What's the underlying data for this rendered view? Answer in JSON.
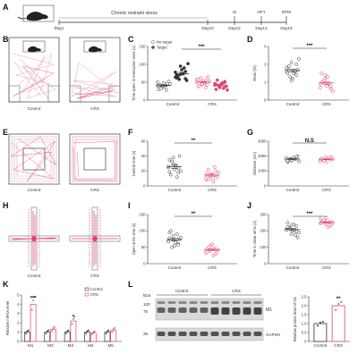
{
  "panel_labels": [
    "A",
    "B",
    "C",
    "D",
    "E",
    "F",
    "G",
    "H",
    "I",
    "J",
    "K",
    "L"
  ],
  "timeline": {
    "stress_label": "Chronic restraint stress",
    "days": [
      "Day1",
      "Day10",
      "Day12",
      "Day14",
      "Day16"
    ],
    "tests": [
      "SI",
      "OFT",
      "EPM"
    ]
  },
  "groups": {
    "control": "Control",
    "crs": "CRS"
  },
  "colors": {
    "control": "#333333",
    "crs": "#e0456d",
    "track": "#e8a4b4",
    "blot": "#3a3a3a"
  },
  "chart_data": [
    {
      "panel": "C",
      "type": "scatter",
      "ylabel": "Time spent in interaction zone (s)",
      "ylim": [
        0,
        150
      ],
      "yticks": [
        "0",
        "50",
        "100",
        "150"
      ],
      "legend": [
        "No target",
        "Target"
      ],
      "categories": [
        "Control",
        "CRS"
      ],
      "significance": "***",
      "series": [
        {
          "name": "No target",
          "group": "Control",
          "values": [
            40,
            36,
            44,
            30,
            48,
            52,
            42,
            38,
            45,
            33,
            28,
            50,
            39,
            46,
            41
          ]
        },
        {
          "name": "Target",
          "group": "Control",
          "values": [
            78,
            95,
            60,
            70,
            85,
            55,
            66,
            74,
            102,
            58,
            90,
            64,
            72,
            80,
            62
          ]
        },
        {
          "name": "No target",
          "group": "CRS",
          "values": [
            50,
            44,
            60,
            38,
            55,
            66,
            40,
            48,
            52,
            62,
            35,
            58,
            45,
            43,
            57
          ]
        },
        {
          "name": "Target",
          "group": "CRS",
          "values": [
            42,
            35,
            50,
            30,
            45,
            38,
            56,
            48,
            28,
            40,
            33,
            46,
            36,
            52,
            44
          ]
        }
      ]
    },
    {
      "panel": "D",
      "type": "scatter",
      "ylabel": "Ratio (%)",
      "ylim": [
        0,
        3
      ],
      "yticks": [
        "0",
        "1",
        "2",
        "3"
      ],
      "categories": [
        "Control",
        "CRS"
      ],
      "significance": "***",
      "series": [
        {
          "group": "Control",
          "values": [
            1.6,
            2.1,
            1.4,
            1.8,
            1.2,
            1.7,
            1.9,
            1.5,
            2.3,
            1.3,
            1.6,
            1.8,
            1.1,
            2.0,
            1.5
          ]
        },
        {
          "group": "CRS",
          "values": [
            0.9,
            1.2,
            0.7,
            1.5,
            0.8,
            0.6,
            1.0,
            1.3,
            0.5,
            1.1,
            0.9,
            0.7,
            1.4,
            0.8,
            1.0
          ]
        }
      ]
    },
    {
      "panel": "F",
      "type": "scatter",
      "ylabel": "Central time (s)",
      "ylim": [
        0,
        60
      ],
      "yticks": [
        "0",
        "20",
        "40",
        "60"
      ],
      "categories": [
        "Control",
        "CRS"
      ],
      "significance": "**",
      "series": [
        {
          "group": "Control",
          "values": [
            25,
            30,
            18,
            35,
            22,
            40,
            15,
            28,
            20,
            33,
            12,
            26,
            38,
            24,
            19
          ]
        },
        {
          "group": "CRS",
          "values": [
            14,
            10,
            20,
            8,
            16,
            12,
            22,
            6,
            18,
            13,
            25,
            9,
            15,
            11,
            17
          ]
        }
      ]
    },
    {
      "panel": "G",
      "type": "scatter",
      "ylabel": "Distance (cm)",
      "ylim": [
        0,
        3000
      ],
      "yticks": [
        "0",
        "1000",
        "2000",
        "3000"
      ],
      "categories": [
        "Control",
        "CRS"
      ],
      "significance": "N.S",
      "series": [
        {
          "group": "Control",
          "values": [
            1800,
            1700,
            1950,
            1600,
            1850,
            2000,
            1750,
            1900,
            1650,
            1820,
            1780,
            1880,
            1720,
            1960,
            1690
          ]
        },
        {
          "group": "CRS",
          "values": [
            1750,
            1680,
            1900,
            1820,
            1600,
            1950,
            1720,
            1850,
            1780,
            1700,
            1880,
            1650,
            1920,
            1760,
            1810
          ]
        }
      ]
    },
    {
      "panel": "I",
      "type": "scatter",
      "ylabel": "Open arms time (s)",
      "ylim": [
        0,
        150
      ],
      "yticks": [
        "0",
        "50",
        "100",
        "150"
      ],
      "categories": [
        "Control",
        "CRS"
      ],
      "significance": "**",
      "series": [
        {
          "group": "Control",
          "values": [
            70,
            85,
            60,
            95,
            55,
            75,
            100,
            65,
            80,
            50,
            90,
            68,
            72,
            58,
            78
          ]
        },
        {
          "group": "CRS",
          "values": [
            40,
            55,
            30,
            45,
            60,
            35,
            50,
            25,
            42,
            38,
            48,
            33,
            52,
            44,
            36
          ]
        }
      ]
    },
    {
      "panel": "J",
      "type": "scatter",
      "ylabel": "Time in close arms (s)",
      "ylim": [
        0,
        300
      ],
      "yticks": [
        "0",
        "100",
        "200",
        "300"
      ],
      "categories": [
        "Control",
        "CRS"
      ],
      "significance": "***",
      "series": [
        {
          "group": "Control",
          "values": [
            210,
            180,
            230,
            250,
            200,
            160,
            220,
            240,
            190,
            215,
            175,
            205,
            235,
            195,
            225
          ]
        },
        {
          "group": "CRS",
          "values": [
            245,
            270,
            230,
            255,
            280,
            240,
            260,
            225,
            250,
            265,
            235,
            275,
            242,
            258,
            248
          ]
        }
      ]
    },
    {
      "panel": "K",
      "type": "bar",
      "ylabel": "Relative mRNA level",
      "ylim": [
        0,
        5
      ],
      "yticks": [
        "0",
        "1",
        "2",
        "3",
        "4",
        "5"
      ],
      "categories": [
        "M1",
        "M2",
        "M3",
        "M4",
        "M5"
      ],
      "legend": [
        "Control",
        "CRS"
      ],
      "annotations": [
        "***",
        "",
        "*",
        "",
        ""
      ],
      "series": [
        {
          "name": "Control",
          "values": [
            1.0,
            1.0,
            1.0,
            1.0,
            1.0
          ]
        },
        {
          "name": "CRS",
          "values": [
            4.0,
            1.3,
            2.2,
            0.9,
            1.2
          ]
        }
      ]
    },
    {
      "panel": "L",
      "type": "bar",
      "ylabel": "Relative protein level of M1",
      "ylim": [
        0,
        2.5
      ],
      "yticks": [
        "0",
        "0.5",
        "1.0",
        "1.5",
        "2.0",
        "2.5"
      ],
      "categories": [
        "Control",
        "CRS"
      ],
      "significance": "**",
      "values": [
        1.0,
        2.0
      ]
    }
  ],
  "blot": {
    "kda_label": "kDa",
    "markers": [
      "100",
      "75",
      "35"
    ],
    "protein_labels": [
      "M1",
      "GAPDH"
    ],
    "groups": [
      "Control",
      "CRS"
    ]
  }
}
